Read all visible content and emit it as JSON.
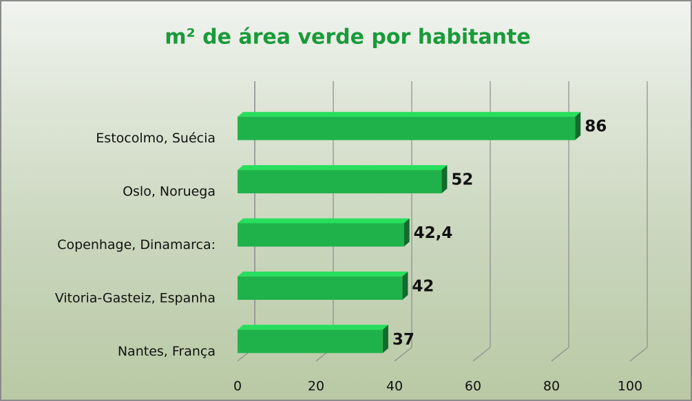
{
  "chart_data": {
    "type": "bar",
    "orientation": "horizontal",
    "title": "m² de área verde por habitante",
    "categories": [
      "Estocolmo, Suécia",
      "Oslo, Noruega",
      "Copenhage, Dinamarca:",
      "Vitoria-Gasteiz,  Espanha",
      "Nantes, França"
    ],
    "values": [
      86,
      52,
      42.4,
      42,
      37
    ],
    "value_labels": [
      "86",
      "52",
      "42,4",
      "42",
      "37"
    ],
    "color": "#1fb24a",
    "xlim": [
      0,
      100
    ],
    "xticks": [
      0,
      20,
      40,
      60,
      80,
      100
    ],
    "grid": true
  }
}
